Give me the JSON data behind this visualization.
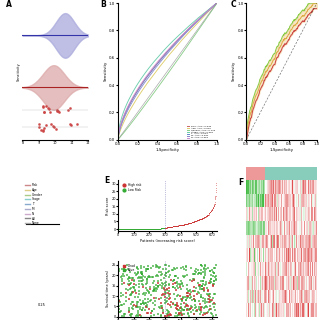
{
  "panel_A": {
    "title": "A",
    "blue_color": "#aaaadd",
    "red_color": "#ddaaaa",
    "blue_line": "#3333aa",
    "red_line": "#aa2222",
    "blue_mu": 10.6,
    "red_mu": 9.9,
    "sigma": 0.6,
    "xlim": [
      8,
      12
    ],
    "x_ticks": [
      8,
      9,
      10,
      11,
      12
    ],
    "legend_items": [
      "Risk",
      "Age",
      "Gender",
      "Stage",
      "T",
      "M",
      "N",
      "All",
      "None"
    ],
    "legend_colors": [
      "#cc8888",
      "#ddcc88",
      "#aacc88",
      "#88cccc",
      "#88aacc",
      "#aaaacc",
      "#ccaacc",
      "#888888",
      "#aaaaaa"
    ]
  },
  "panel_B": {
    "title": "B",
    "xlabel": "1-Specificity",
    "ylabel": "Sensitivity",
    "curves": [
      {
        "label": "Risk, AUC=0.646",
        "color": "#cc6666",
        "auc": 0.646
      },
      {
        "label": "Age, AUC=0.605",
        "color": "#ddcc66",
        "auc": 0.605
      },
      {
        "label": "Gender, AUC=0.479",
        "color": "#88cc88",
        "auc": 0.479
      },
      {
        "label": "Stage, AUC=0.681",
        "color": "#66ccaa",
        "auc": 0.681
      },
      {
        "label": "T, AUC=0.644",
        "color": "#6688cc",
        "auc": 0.644
      },
      {
        "label": "M, AUC=0.631",
        "color": "#8888cc",
        "auc": 0.631
      },
      {
        "label": "N, AUC=0.654",
        "color": "#cc88cc",
        "auc": 0.654
      }
    ]
  },
  "panel_C": {
    "title": "C",
    "xlabel": "1-Specificity",
    "ylabel": "Sensitivity",
    "line_colors": [
      "#88cc44",
      "#ddaa44",
      "#cc4444"
    ],
    "band_fill": "#eecc88"
  },
  "panel_E_top": {
    "title": "E",
    "xlabel": "Patients (increasing risk score)",
    "ylabel": "Risk score",
    "high_risk_color": "#cc3333",
    "low_risk_color": "#33aa33",
    "n_patients": 630,
    "cutoff": 300
  },
  "panel_E_bottom": {
    "xlabel": "Patients (increasing risk score)",
    "ylabel": "Survival time (years)",
    "dead_color": "#cc3333",
    "alive_color": "#33aa33",
    "n_patients": 630,
    "cutoff": 300,
    "max_survival": 25
  },
  "panel_F": {
    "title": "F",
    "high_color": "#cc3333",
    "low_color": "#33aa33",
    "bar_high_color": "#ee9999",
    "bar_low_color": "#88ccbb",
    "n_genes": 10,
    "n_patients_high": 80,
    "n_patients_low": 220
  }
}
